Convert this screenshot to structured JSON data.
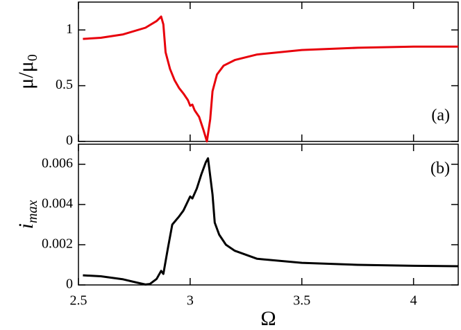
{
  "chart_data": [
    {
      "type": "line",
      "panel_label": "(a)",
      "ylabel": {
        "main": "μ/μ",
        "sub": "0"
      },
      "xlim": [
        2.5,
        4.2
      ],
      "xticks": [
        2.5,
        3,
        3.5,
        4
      ],
      "ylim": [
        0,
        1.25
      ],
      "yticks": [
        0,
        0.5,
        1
      ],
      "series": [
        {
          "color": "#e8000b",
          "x": [
            2.52,
            2.6,
            2.7,
            2.8,
            2.85,
            2.87,
            2.88,
            2.89,
            2.91,
            2.93,
            2.95,
            2.97,
            2.99,
            3.0,
            3.01,
            3.02,
            3.04,
            3.06,
            3.075,
            3.09,
            3.1,
            3.12,
            3.15,
            3.2,
            3.3,
            3.5,
            3.75,
            4.0,
            4.2
          ],
          "values": [
            0.92,
            0.93,
            0.96,
            1.02,
            1.08,
            1.12,
            1.05,
            0.8,
            0.65,
            0.55,
            0.48,
            0.43,
            0.37,
            0.32,
            0.33,
            0.28,
            0.22,
            0.1,
            0.0,
            0.2,
            0.45,
            0.6,
            0.68,
            0.73,
            0.78,
            0.82,
            0.84,
            0.85,
            0.85
          ]
        }
      ]
    },
    {
      "type": "line",
      "panel_label": "(b)",
      "ylabel": {
        "main": "i",
        "sub": "max"
      },
      "xlabel": "Ω",
      "xlim": [
        2.5,
        4.2
      ],
      "xticks": [
        2.5,
        3,
        3.5,
        4
      ],
      "ylim": [
        0,
        0.007
      ],
      "yticks": [
        0,
        0.002,
        0.004,
        0.006
      ],
      "series": [
        {
          "color": "#000000",
          "x": [
            2.52,
            2.6,
            2.7,
            2.76,
            2.8,
            2.82,
            2.85,
            2.87,
            2.88,
            2.9,
            2.92,
            2.95,
            2.97,
            3.0,
            3.01,
            3.03,
            3.05,
            3.07,
            3.08,
            3.1,
            3.11,
            3.13,
            3.16,
            3.2,
            3.3,
            3.5,
            3.75,
            4.0,
            4.2
          ],
          "values": [
            0.00048,
            0.00043,
            0.00028,
            0.00012,
            2e-05,
            5e-05,
            0.0003,
            0.0007,
            0.00055,
            0.0018,
            0.003,
            0.0034,
            0.0037,
            0.0044,
            0.0043,
            0.0048,
            0.0055,
            0.0061,
            0.0063,
            0.0045,
            0.0031,
            0.0025,
            0.002,
            0.0017,
            0.0013,
            0.0011,
            0.001,
            0.00095,
            0.00093
          ]
        }
      ]
    }
  ]
}
